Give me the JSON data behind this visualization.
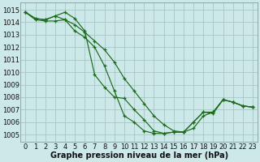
{
  "xlabel": "Graphe pression niveau de la mer (hPa)",
  "bg_color": "#cde8e8",
  "line_color": "#1a6b1a",
  "x_ticks": [
    0,
    1,
    2,
    3,
    4,
    5,
    6,
    7,
    8,
    9,
    10,
    11,
    12,
    13,
    14,
    15,
    16,
    17,
    18,
    19,
    20,
    21,
    22,
    23
  ],
  "y_ticks": [
    1005,
    1006,
    1007,
    1008,
    1009,
    1010,
    1011,
    1012,
    1013,
    1014,
    1015
  ],
  "ylim": [
    1004.4,
    1015.6
  ],
  "xlim": [
    -0.5,
    23.5
  ],
  "line1": [
    1014.8,
    1014.3,
    1014.2,
    1014.5,
    1014.8,
    1014.3,
    1013.3,
    1009.8,
    1008.8,
    1008.0,
    1007.9,
    1007.0,
    1006.2,
    1005.3,
    1005.1,
    1005.2,
    1005.2,
    1006.0,
    1006.8,
    1006.7,
    1007.8,
    1007.6,
    1007.3,
    1007.2
  ],
  "line2": [
    1014.8,
    1014.3,
    1014.2,
    1014.5,
    1014.2,
    1013.3,
    1012.8,
    1012.0,
    1010.5,
    1008.5,
    1006.5,
    1006.0,
    1005.3,
    1005.1,
    1005.1,
    1005.2,
    1005.2,
    1006.0,
    1006.8,
    1006.8,
    1007.8,
    1007.6,
    1007.3,
    1007.2
  ],
  "line3": [
    1014.8,
    1014.2,
    1014.1,
    1014.1,
    1014.2,
    1013.8,
    1013.2,
    1012.5,
    1011.8,
    1010.8,
    1009.5,
    1008.5,
    1007.5,
    1006.5,
    1005.8,
    1005.3,
    1005.2,
    1005.5,
    1006.5,
    1006.8,
    1007.8,
    1007.6,
    1007.3,
    1007.2
  ],
  "font_size_xlabel": 7,
  "font_size_ytick": 6,
  "font_size_xtick": 6
}
